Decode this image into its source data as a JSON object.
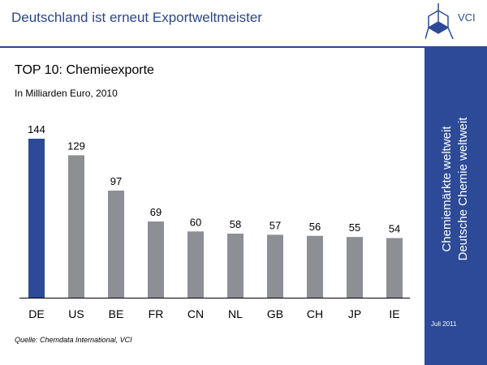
{
  "header": {
    "title": "Deutschland ist erneut Exportweltmeister",
    "logo_text": "VCI"
  },
  "sidebar": {
    "line1": "Chemiemärkte weltweit",
    "line2": "Deutsche Chemie weltweit",
    "date": "Juli 2011"
  },
  "colors": {
    "brand": "#2c4a97",
    "highlight_bar": "#2c4a97",
    "default_bar": "#8c8f94"
  },
  "chart_data": {
    "type": "bar",
    "title": "TOP 10: Chemieexporte",
    "subtitle": "In Milliarden Euro, 2010",
    "categories": [
      "DE",
      "US",
      "BE",
      "FR",
      "CN",
      "NL",
      "GB",
      "CH",
      "JP",
      "IE"
    ],
    "values": [
      144,
      129,
      97,
      69,
      60,
      58,
      57,
      56,
      55,
      54
    ],
    "highlight": "DE",
    "ylim": [
      0,
      144
    ],
    "grid": false
  },
  "footer": {
    "source": "Quelle: Chemdata International, VCI"
  }
}
